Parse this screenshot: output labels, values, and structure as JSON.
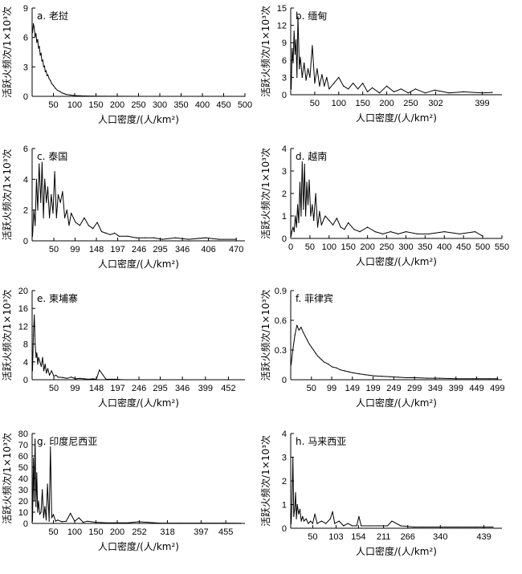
{
  "chart_data": [
    {
      "type": "line",
      "title": "a. 老挝",
      "xlabel": "人口密度/(人/km²)",
      "ylabel": "活跃火频次/1×10³次",
      "xticks": [
        "50",
        "100",
        "150",
        "200",
        "250",
        "300",
        "350",
        "400",
        "450",
        "500"
      ],
      "yticks": [
        "0",
        "3",
        "6",
        "9"
      ],
      "xlim": [
        0,
        500
      ],
      "ylim": [
        0,
        9
      ],
      "x": [
        1,
        3,
        5,
        7,
        9,
        11,
        13,
        15,
        17,
        19,
        21,
        23,
        25,
        27,
        29,
        31,
        33,
        35,
        37,
        40,
        43,
        46,
        50,
        55,
        60,
        65,
        70,
        75,
        80,
        90,
        100,
        115,
        130,
        150,
        170,
        200,
        250,
        300,
        350,
        400,
        450,
        500
      ],
      "y": [
        6.5,
        7.4,
        7.0,
        6.1,
        6.4,
        5.5,
        5.8,
        4.9,
        5.1,
        4.2,
        4.4,
        3.6,
        3.7,
        3.0,
        3.1,
        2.5,
        2.6,
        2.1,
        2.2,
        1.8,
        1.6,
        1.3,
        1.1,
        0.8,
        0.6,
        0.5,
        0.35,
        0.28,
        0.2,
        0.13,
        0.08,
        0.05,
        0.03,
        0.02,
        0.01,
        0.01,
        0.0,
        0.0,
        0.0,
        0.0,
        0.0,
        0.0
      ]
    },
    {
      "type": "line",
      "title": "b. 缅甸",
      "xlabel": "人口密度/(人/km²)",
      "ylabel": "活跃火频次/1×10³次",
      "xticks": [
        "50",
        "100",
        "150",
        "200",
        "250",
        "302",
        "399"
      ],
      "yticks": [
        "0",
        "3",
        "6",
        "9",
        "12",
        "15"
      ],
      "xlim": [
        0,
        440
      ],
      "ylim": [
        0,
        15
      ],
      "x": [
        1,
        3,
        5,
        7,
        9,
        11,
        13,
        15,
        18,
        20,
        24,
        28,
        32,
        36,
        40,
        45,
        50,
        55,
        60,
        65,
        70,
        75,
        80,
        90,
        100,
        110,
        120,
        130,
        140,
        150,
        160,
        170,
        185,
        200,
        215,
        230,
        245,
        260,
        280,
        300,
        330,
        360,
        399,
        420
      ],
      "y": [
        1.0,
        8.0,
        5.5,
        11.0,
        7.0,
        9.5,
        3.0,
        13.5,
        4.5,
        6.5,
        3.0,
        5.5,
        2.5,
        4.5,
        3.0,
        8.5,
        2.0,
        4.5,
        1.5,
        3.5,
        1.5,
        3.0,
        1.0,
        2.0,
        3.0,
        1.5,
        1.0,
        2.0,
        1.0,
        2.0,
        0.5,
        1.2,
        0.3,
        1.5,
        0.5,
        1.0,
        0.3,
        1.0,
        0.3,
        0.8,
        0.3,
        0.5,
        0.3,
        0.4
      ]
    },
    {
      "type": "line",
      "title": "c. 泰国",
      "xlabel": "人口密度/(人/km²)",
      "ylabel": "活跃火频次/1×10³次",
      "xticks": [
        "50",
        "99",
        "148",
        "197",
        "246",
        "295",
        "346",
        "406",
        "470"
      ],
      "yticks": [
        "0",
        "2",
        "4",
        "6"
      ],
      "xlim": [
        0,
        490
      ],
      "ylim": [
        0,
        6
      ],
      "x": [
        1,
        4,
        7,
        10,
        13,
        16,
        20,
        23,
        26,
        29,
        33,
        36,
        40,
        44,
        48,
        52,
        56,
        60,
        65,
        70,
        75,
        80,
        85,
        90,
        95,
        100,
        110,
        120,
        130,
        140,
        150,
        160,
        170,
        180,
        190,
        200,
        220,
        240,
        260,
        280,
        300,
        330,
        360,
        400,
        430,
        470
      ],
      "y": [
        0.3,
        2.0,
        1.0,
        4.0,
        2.0,
        5.0,
        2.5,
        5.1,
        1.5,
        4.0,
        2.5,
        3.5,
        1.5,
        3.0,
        1.8,
        4.5,
        1.5,
        3.0,
        2.5,
        3.2,
        1.5,
        2.0,
        1.0,
        1.8,
        1.5,
        1.2,
        1.0,
        1.5,
        1.0,
        0.8,
        1.2,
        0.6,
        0.5,
        0.4,
        0.5,
        0.3,
        0.3,
        0.2,
        0.2,
        0.2,
        0.1,
        0.2,
        0.1,
        0.2,
        0.1,
        0.1
      ]
    },
    {
      "type": "line",
      "title": "d. 越南",
      "xlabel": "人口密度/(人/km²)",
      "ylabel": "活跃火频次/1×10³次",
      "xticks": [
        "0",
        "50",
        "100",
        "150",
        "200",
        "250",
        "300",
        "350",
        "400",
        "450",
        "500",
        "550"
      ],
      "yticks": [
        "0",
        "1",
        "2",
        "3",
        "4"
      ],
      "xlim": [
        0,
        550
      ],
      "ylim": [
        0,
        4
      ],
      "x": [
        1,
        3,
        6,
        9,
        12,
        15,
        18,
        21,
        24,
        27,
        30,
        33,
        36,
        39,
        42,
        45,
        48,
        52,
        56,
        60,
        65,
        70,
        75,
        80,
        90,
        100,
        110,
        120,
        130,
        140,
        150,
        165,
        180,
        200,
        220,
        240,
        260,
        280,
        300,
        330,
        360,
        400,
        440,
        480,
        500
      ],
      "y": [
        0.1,
        0.3,
        0.5,
        0.3,
        1.0,
        0.5,
        1.5,
        0.7,
        2.5,
        1.0,
        3.4,
        1.3,
        3.3,
        1.0,
        2.5,
        1.5,
        2.6,
        1.0,
        1.5,
        0.8,
        2.0,
        0.5,
        1.2,
        0.6,
        1.0,
        0.8,
        0.6,
        0.9,
        0.5,
        0.4,
        0.7,
        0.4,
        0.3,
        0.5,
        0.3,
        0.2,
        0.3,
        0.2,
        0.3,
        0.2,
        0.2,
        0.3,
        0.2,
        0.3,
        0.1
      ]
    },
    {
      "type": "line",
      "title": "e. 柬埔寨",
      "xlabel": "人口密度/(人/km²)",
      "ylabel": "活跃火频次/1×10³次",
      "xticks": [
        "50",
        "99",
        "148",
        "197",
        "246",
        "295",
        "346",
        "399",
        "452"
      ],
      "yticks": [
        "0",
        "4",
        "8",
        "12",
        "16",
        "20"
      ],
      "xlim": [
        0,
        490
      ],
      "ylim": [
        0,
        20
      ],
      "x": [
        1,
        3,
        5,
        7,
        9,
        11,
        13,
        15,
        18,
        21,
        24,
        27,
        30,
        33,
        36,
        40,
        45,
        50,
        55,
        60,
        70,
        80,
        90,
        100,
        110,
        120,
        130,
        140,
        148,
        155,
        170,
        190,
        210,
        250,
        300,
        350,
        400,
        450,
        480
      ],
      "y": [
        2.0,
        10.0,
        14.5,
        8.0,
        5.0,
        6.0,
        3.5,
        5.0,
        4.0,
        3.0,
        5.0,
        2.0,
        3.5,
        1.5,
        2.5,
        1.0,
        2.0,
        0.8,
        1.0,
        0.6,
        0.5,
        0.3,
        0.6,
        0.2,
        0.3,
        0.2,
        0.1,
        0.2,
        0.1,
        2.2,
        0.1,
        0.1,
        0.0,
        0.0,
        0.0,
        0.0,
        0.0,
        0.0,
        0.0
      ]
    },
    {
      "type": "line",
      "title": "f. 菲律宾",
      "xlabel": "人口密度/(人/km²)",
      "ylabel": "活跃火频次/1×10³次",
      "xticks": [
        "50",
        "99",
        "149",
        "199",
        "249",
        "299",
        "349",
        "399",
        "449",
        "499"
      ],
      "yticks": [
        "0",
        "0.3",
        "0.6",
        "0.9"
      ],
      "xlim": [
        0,
        510
      ],
      "ylim": [
        0,
        0.9
      ],
      "x": [
        1,
        5,
        10,
        15,
        20,
        25,
        30,
        35,
        40,
        45,
        50,
        55,
        60,
        65,
        70,
        75,
        80,
        90,
        100,
        110,
        120,
        130,
        140,
        150,
        165,
        180,
        200,
        220,
        240,
        260,
        280,
        300,
        330,
        360,
        400,
        440,
        480,
        500
      ],
      "y": [
        0.15,
        0.3,
        0.45,
        0.55,
        0.5,
        0.53,
        0.48,
        0.44,
        0.4,
        0.36,
        0.33,
        0.3,
        0.27,
        0.24,
        0.22,
        0.2,
        0.18,
        0.16,
        0.13,
        0.12,
        0.1,
        0.09,
        0.08,
        0.07,
        0.06,
        0.05,
        0.04,
        0.035,
        0.03,
        0.025,
        0.02,
        0.02,
        0.015,
        0.015,
        0.01,
        0.01,
        0.01,
        0.01
      ]
    },
    {
      "type": "line",
      "title": "g. 印度尼西亚",
      "xlabel": "人口密度/(人/km²)",
      "ylabel": "活跃火频次/1×10³次",
      "xticks": [
        "50",
        "100",
        "150",
        "200",
        "252",
        "318",
        "397",
        "455"
      ],
      "yticks": [
        "0",
        "10",
        "20",
        "30",
        "40",
        "50",
        "60",
        "70",
        "80"
      ],
      "xlim": [
        0,
        500
      ],
      "ylim": [
        0,
        80
      ],
      "x": [
        1,
        3,
        5,
        7,
        9,
        11,
        13,
        15,
        18,
        21,
        24,
        27,
        30,
        33,
        36,
        40,
        43,
        46,
        50,
        55,
        60,
        70,
        80,
        90,
        100,
        110,
        120,
        130,
        150,
        175,
        200,
        225,
        250,
        300,
        350,
        400,
        450,
        490
      ],
      "y": [
        2.0,
        58.0,
        20.0,
        75.0,
        15.0,
        45.0,
        10.0,
        20.0,
        8.0,
        10.0,
        30.0,
        5.0,
        15.0,
        3.0,
        35.0,
        2.0,
        68.0,
        5.0,
        8.0,
        2.0,
        3.0,
        1.5,
        2.0,
        9.0,
        2.0,
        5.0,
        1.0,
        2.0,
        1.0,
        0.5,
        0.5,
        0.5,
        1.5,
        0.3,
        0.3,
        0.3,
        0.3,
        0.2
      ]
    },
    {
      "type": "line",
      "title": "h. 马来西亚",
      "xlabel": "人口密度/(人/km²)",
      "ylabel": "活跃火频次/1×10³次",
      "xticks": [
        "50",
        "103",
        "154",
        "211",
        "266",
        "340",
        "439"
      ],
      "yticks": [
        "0",
        "1",
        "2",
        "3",
        "4"
      ],
      "xlim": [
        0,
        480
      ],
      "ylim": [
        0,
        4
      ],
      "x": [
        1,
        3,
        5,
        7,
        9,
        11,
        13,
        15,
        18,
        21,
        24,
        27,
        30,
        35,
        40,
        45,
        50,
        55,
        60,
        70,
        80,
        90,
        95,
        100,
        110,
        120,
        130,
        140,
        150,
        155,
        160,
        180,
        200,
        220,
        230,
        250,
        280,
        300,
        340,
        380,
        420,
        460
      ],
      "y": [
        0.2,
        1.0,
        3.0,
        0.5,
        0.8,
        1.5,
        0.4,
        1.0,
        0.6,
        0.8,
        0.3,
        0.5,
        0.3,
        0.4,
        0.2,
        0.3,
        0.2,
        0.6,
        0.2,
        0.3,
        0.2,
        0.4,
        0.7,
        0.2,
        0.3,
        0.1,
        0.2,
        0.1,
        0.1,
        0.5,
        0.1,
        0.1,
        0.1,
        0.1,
        0.3,
        0.1,
        0.05,
        0.05,
        0.05,
        0.05,
        0.05,
        0.05
      ]
    }
  ]
}
